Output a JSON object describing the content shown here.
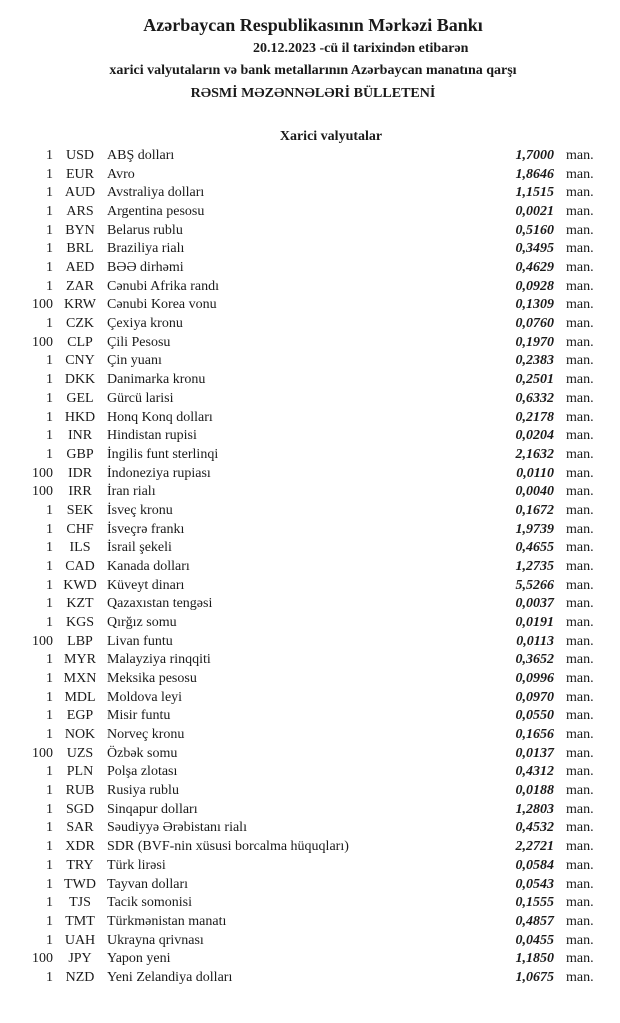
{
  "header": {
    "title": "Azərbaycan Respublikasının Mərkəzi Bankı",
    "date_line": "20.12.2023 -cü il tarixindən etibarən",
    "subtitle": "xarici valyutaların və bank metallarının Azərbaycan manatına qarşı",
    "bulletin": "RƏSMİ MƏZƏNNƏLƏRİ BÜLLETENİ"
  },
  "section_title": "Xarici valyutalar",
  "rows": [
    {
      "amount": "1",
      "code": "USD",
      "name": "ABŞ dolları",
      "rate": "1,7000",
      "unit": "man."
    },
    {
      "amount": "1",
      "code": "EUR",
      "name": "Avro",
      "rate": "1,8646",
      "unit": "man."
    },
    {
      "amount": "1",
      "code": "AUD",
      "name": "Avstraliya dolları",
      "rate": "1,1515",
      "unit": "man."
    },
    {
      "amount": "1",
      "code": "ARS",
      "name": "Argentina pesosu",
      "rate": "0,0021",
      "unit": "man."
    },
    {
      "amount": "1",
      "code": "BYN",
      "name": "Belarus rublu",
      "rate": "0,5160",
      "unit": "man."
    },
    {
      "amount": "1",
      "code": "BRL",
      "name": "Braziliya rialı",
      "rate": "0,3495",
      "unit": "man."
    },
    {
      "amount": "1",
      "code": "AED",
      "name": "BƏƏ dirhəmi",
      "rate": "0,4629",
      "unit": "man."
    },
    {
      "amount": "1",
      "code": "ZAR",
      "name": "Cənubi Afrika randı",
      "rate": "0,0928",
      "unit": "man."
    },
    {
      "amount": "100",
      "code": "KRW",
      "name": "Cənubi Korea vonu",
      "rate": "0,1309",
      "unit": "man."
    },
    {
      "amount": "1",
      "code": "CZK",
      "name": "Çexiya kronu",
      "rate": "0,0760",
      "unit": "man."
    },
    {
      "amount": "100",
      "code": "CLP",
      "name": "Çili Pesosu",
      "rate": "0,1970",
      "unit": "man."
    },
    {
      "amount": "1",
      "code": "CNY",
      "name": "Çin yuanı",
      "rate": "0,2383",
      "unit": "man."
    },
    {
      "amount": "1",
      "code": "DKK",
      "name": "Danimarka kronu",
      "rate": "0,2501",
      "unit": "man."
    },
    {
      "amount": "1",
      "code": "GEL",
      "name": "Gürcü larisi",
      "rate": "0,6332",
      "unit": "man."
    },
    {
      "amount": "1",
      "code": "HKD",
      "name": "Honq Konq dolları",
      "rate": "0,2178",
      "unit": "man."
    },
    {
      "amount": "1",
      "code": "INR",
      "name": "Hindistan rupisi",
      "rate": "0,0204",
      "unit": "man."
    },
    {
      "amount": "1",
      "code": "GBP",
      "name": "İngilis funt sterlinqi",
      "rate": "2,1632",
      "unit": "man."
    },
    {
      "amount": "100",
      "code": "IDR",
      "name": "İndoneziya rupiası",
      "rate": "0,0110",
      "unit": "man."
    },
    {
      "amount": "100",
      "code": "IRR",
      "name": "İran rialı",
      "rate": "0,0040",
      "unit": "man."
    },
    {
      "amount": "1",
      "code": "SEK",
      "name": "İsveç kronu",
      "rate": "0,1672",
      "unit": "man."
    },
    {
      "amount": "1",
      "code": "CHF",
      "name": "İsveçrə frankı",
      "rate": "1,9739",
      "unit": "man."
    },
    {
      "amount": "1",
      "code": "ILS",
      "name": "İsrail şekeli",
      "rate": "0,4655",
      "unit": "man."
    },
    {
      "amount": "1",
      "code": "CAD",
      "name": "Kanada dolları",
      "rate": "1,2735",
      "unit": "man."
    },
    {
      "amount": "1",
      "code": "KWD",
      "name": "Küveyt dinarı",
      "rate": "5,5266",
      "unit": "man."
    },
    {
      "amount": "1",
      "code": "KZT",
      "name": "Qazaxıstan tengəsi",
      "rate": "0,0037",
      "unit": "man."
    },
    {
      "amount": "1",
      "code": "KGS",
      "name": "Qırğız somu",
      "rate": "0,0191",
      "unit": "man."
    },
    {
      "amount": "100",
      "code": "LBP",
      "name": "Livan funtu",
      "rate": "0,0113",
      "unit": "man."
    },
    {
      "amount": "1",
      "code": "MYR",
      "name": "Malayziya rinqqiti",
      "rate": "0,3652",
      "unit": "man."
    },
    {
      "amount": "1",
      "code": "MXN",
      "name": "Meksika pesosu",
      "rate": "0,0996",
      "unit": "man."
    },
    {
      "amount": "1",
      "code": "MDL",
      "name": "Moldova leyi",
      "rate": "0,0970",
      "unit": "man."
    },
    {
      "amount": "1",
      "code": "EGP",
      "name": "Misir funtu",
      "rate": "0,0550",
      "unit": "man."
    },
    {
      "amount": "1",
      "code": "NOK",
      "name": "Norveç kronu",
      "rate": "0,1656",
      "unit": "man."
    },
    {
      "amount": "100",
      "code": "UZS",
      "name": "Özbək somu",
      "rate": "0,0137",
      "unit": "man."
    },
    {
      "amount": "1",
      "code": "PLN",
      "name": "Polşa zlotası",
      "rate": "0,4312",
      "unit": "man."
    },
    {
      "amount": "1",
      "code": "RUB",
      "name": "Rusiya rublu",
      "rate": "0,0188",
      "unit": "man."
    },
    {
      "amount": "1",
      "code": "SGD",
      "name": "Sinqapur dolları",
      "rate": "1,2803",
      "unit": "man."
    },
    {
      "amount": "1",
      "code": "SAR",
      "name": "Səudiyyə Ərəbistanı rialı",
      "rate": "0,4532",
      "unit": "man."
    },
    {
      "amount": "1",
      "code": "XDR",
      "name": "SDR (BVF-nin xüsusi borcalma hüquqları)",
      "rate": "2,2721",
      "unit": "man."
    },
    {
      "amount": "1",
      "code": "TRY",
      "name": "Türk lirəsi",
      "rate": "0,0584",
      "unit": "man."
    },
    {
      "amount": "1",
      "code": "TWD",
      "name": "Tayvan dolları",
      "rate": "0,0543",
      "unit": "man."
    },
    {
      "amount": "1",
      "code": "TJS",
      "name": "Tacik somonisi",
      "rate": "0,1555",
      "unit": "man."
    },
    {
      "amount": "1",
      "code": "TMT",
      "name": "Türkmənistan manatı",
      "rate": "0,4857",
      "unit": "man."
    },
    {
      "amount": "1",
      "code": "UAH",
      "name": "Ukrayna qrivnası",
      "rate": "0,0455",
      "unit": "man."
    },
    {
      "amount": "100",
      "code": "JPY",
      "name": "Yapon yeni",
      "rate": "1,1850",
      "unit": "man."
    },
    {
      "amount": "1",
      "code": "NZD",
      "name": "Yeni Zelandiya dolları",
      "rate": "1,0675",
      "unit": "man."
    }
  ]
}
